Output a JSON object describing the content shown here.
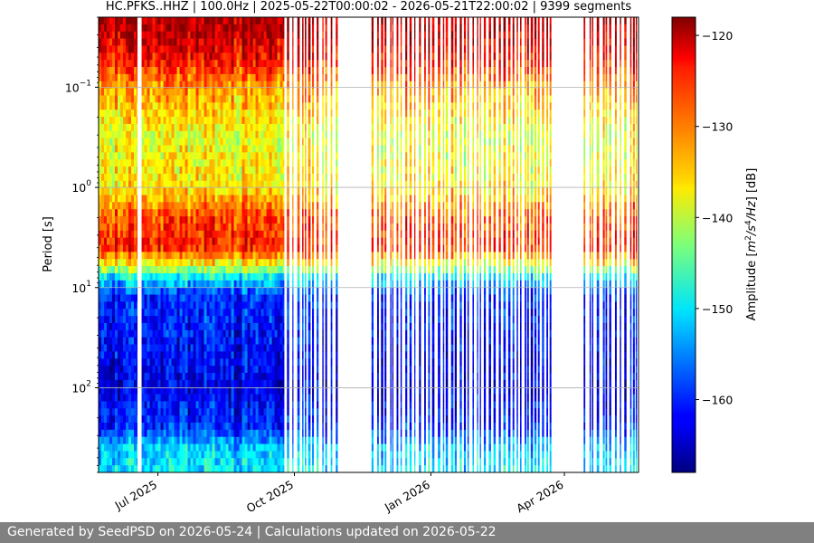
{
  "chart_data": {
    "type": "heatmap",
    "title": "HC.PFKS..HHZ | 100.0Hz | 2025-05-22T00:00:02 - 2026-05-21T22:00:02 | 9399 segments",
    "xlabel": "",
    "ylabel": "Period [s]",
    "x_range": [
      "2025-05-22",
      "2026-05-21"
    ],
    "x_ticks": [
      {
        "date": "2025-07-01",
        "label": "Jul 2025"
      },
      {
        "date": "2025-10-01",
        "label": "Oct 2025"
      },
      {
        "date": "2026-01-01",
        "label": "Jan 2026"
      },
      {
        "date": "2026-04-01",
        "label": "Apr 2026"
      }
    ],
    "y_scale": "log",
    "y_inverted": true,
    "y_range_s": [
      0.02,
      700
    ],
    "y_ticks": [
      {
        "value": 0.1,
        "base": "10",
        "exp": "−1"
      },
      {
        "value": 1,
        "base": "10",
        "exp": "0"
      },
      {
        "value": 10,
        "base": "10",
        "exp": "1"
      },
      {
        "value": 100,
        "base": "10",
        "exp": "2"
      }
    ],
    "grid": true,
    "colormap": "jet",
    "colorbar": {
      "label_prefix": "Amplitude [",
      "label_unit_1": "m",
      "label_exp_1": "2",
      "label_unit_2": "/s",
      "label_exp_2": "4",
      "label_unit_3": "/Hz",
      "label_suffix": "] [dB]",
      "range": [
        -168,
        -118
      ],
      "ticks": [
        -120,
        -130,
        -140,
        -150,
        -160
      ],
      "tick_labels": [
        "−120",
        "−130",
        "−140",
        "−150",
        "−160"
      ]
    },
    "data_coverage": [
      {
        "start": "2025-05-22",
        "end": "2025-06-17",
        "density": "continuous"
      },
      {
        "start": "2025-06-20",
        "end": "2025-09-24",
        "density": "continuous"
      },
      {
        "start": "2025-09-26",
        "end": "2025-10-02",
        "density": "sparse"
      },
      {
        "start": "2025-10-03",
        "end": "2025-11-01",
        "density": "sparse"
      },
      {
        "start": "2025-11-22",
        "end": "2026-03-23",
        "density": "sparse"
      },
      {
        "start": "2026-04-14",
        "end": "2026-04-15",
        "density": "sparse"
      },
      {
        "start": "2026-04-18",
        "end": "2026-05-21",
        "density": "sparse"
      }
    ],
    "psd_profile_db": [
      {
        "period_s": 0.02,
        "db": -120
      },
      {
        "period_s": 0.05,
        "db": -124
      },
      {
        "period_s": 0.1,
        "db": -132
      },
      {
        "period_s": 0.3,
        "db": -138
      },
      {
        "period_s": 1,
        "db": -136
      },
      {
        "period_s": 2,
        "db": -128
      },
      {
        "period_s": 4,
        "db": -126
      },
      {
        "period_s": 6,
        "db": -138
      },
      {
        "period_s": 8,
        "db": -150
      },
      {
        "period_s": 12,
        "db": -160
      },
      {
        "period_s": 100,
        "db": -163
      },
      {
        "period_s": 250,
        "db": -160
      },
      {
        "period_s": 400,
        "db": -152
      },
      {
        "period_s": 700,
        "db": -150
      }
    ]
  },
  "footer": {
    "text": "Generated by SeedPSD on 2026-05-24 | Calculations updated on 2026-05-22"
  }
}
